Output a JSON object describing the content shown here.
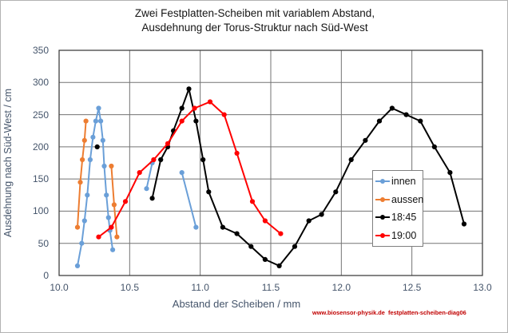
{
  "page": {
    "title_line_1": "Zwei Festplatten-Scheiben mit variablem Abstand,",
    "title_line_2": "Ausdehnung der Torus-Struktur nach Süd-West",
    "watermark": "www.biosensor-physik.de  festplatten-scheiben-diag06"
  },
  "chart_data": {
    "type": "line",
    "title": "Zwei Festplatten-Scheiben mit variablem Abstand, Ausdehnung der Torus-Struktur nach Süd-West",
    "xlabel": "Abstand der Scheiben / mm",
    "ylabel": "Ausdehnung nach Süd-West / cm",
    "xlim": [
      10.0,
      13.0
    ],
    "ylim": [
      0,
      350
    ],
    "x_ticks": [
      10.0,
      10.5,
      11.0,
      11.5,
      12.0,
      12.5,
      13.0
    ],
    "x_tick_labels": [
      "10.0",
      "10.5",
      "11.0",
      "11.5",
      "12.0",
      "12.5",
      "13.0"
    ],
    "y_ticks": [
      0,
      50,
      100,
      150,
      200,
      250,
      300,
      350
    ],
    "y_tick_labels": [
      "0",
      "50",
      "100",
      "150",
      "200",
      "250",
      "300",
      "350"
    ],
    "grid": true,
    "legend_position": "center-right",
    "legend_entries": [
      "innen",
      "aussen",
      "18:45",
      "19:00"
    ],
    "series": [
      {
        "name": "innen",
        "color": "#6a9fd8",
        "marker": "circle",
        "segments": [
          [
            [
              10.13,
              15
            ],
            [
              10.16,
              50
            ],
            [
              10.18,
              85
            ],
            [
              10.2,
              125
            ],
            [
              10.22,
              180
            ],
            [
              10.24,
              215
            ],
            [
              10.26,
              240
            ],
            [
              10.28,
              260
            ],
            [
              10.295,
              240
            ],
            [
              10.31,
              210
            ],
            [
              10.32,
              170
            ],
            [
              10.335,
              125
            ],
            [
              10.35,
              90
            ],
            [
              10.36,
              70
            ],
            [
              10.38,
              40
            ]
          ],
          [
            [
              10.62,
              135
            ],
            [
              10.66,
              175
            ]
          ],
          [
            [
              10.87,
              160
            ],
            [
              10.97,
              75
            ]
          ]
        ]
      },
      {
        "name": "aussen",
        "color": "#ed7d31",
        "marker": "circle",
        "segments": [
          [
            [
              10.13,
              75
            ],
            [
              10.15,
              145
            ],
            [
              10.165,
              180
            ],
            [
              10.18,
              210
            ],
            [
              10.19,
              240
            ]
          ],
          [
            [
              10.37,
              170
            ],
            [
              10.39,
              110
            ],
            [
              10.41,
              60
            ]
          ]
        ]
      },
      {
        "name": "18:45",
        "color": "#000000",
        "marker": "circle",
        "segments": [
          [
            [
              10.27,
              200
            ]
          ],
          [
            [
              10.66,
              120
            ],
            [
              10.72,
              180
            ],
            [
              10.77,
              200
            ],
            [
              10.81,
              225
            ],
            [
              10.87,
              260
            ],
            [
              10.92,
              290
            ],
            [
              10.97,
              240
            ],
            [
              11.02,
              180
            ],
            [
              11.06,
              130
            ],
            [
              11.16,
              75
            ],
            [
              11.26,
              65
            ],
            [
              11.36,
              45
            ],
            [
              11.46,
              25
            ],
            [
              11.56,
              15
            ],
            [
              11.67,
              45
            ],
            [
              11.77,
              85
            ],
            [
              11.86,
              95
            ],
            [
              11.96,
              130
            ],
            [
              12.07,
              180
            ],
            [
              12.17,
              210
            ],
            [
              12.27,
              240
            ],
            [
              12.36,
              260
            ],
            [
              12.46,
              250
            ],
            [
              12.56,
              240
            ],
            [
              12.66,
              200
            ],
            [
              12.77,
              160
            ],
            [
              12.87,
              80
            ]
          ]
        ]
      },
      {
        "name": "19:00",
        "color": "#ff0000",
        "marker": "circle",
        "segments": [
          [
            [
              10.28,
              60
            ],
            [
              10.37,
              75
            ],
            [
              10.47,
              115
            ],
            [
              10.57,
              160
            ],
            [
              10.67,
              180
            ],
            [
              10.77,
              205
            ],
            [
              10.87,
              240
            ],
            [
              10.96,
              260
            ],
            [
              11.07,
              270
            ],
            [
              11.17,
              250
            ],
            [
              11.26,
              190
            ],
            [
              11.37,
              115
            ],
            [
              11.46,
              85
            ],
            [
              11.57,
              65
            ]
          ]
        ]
      }
    ]
  },
  "style": {
    "axis_text_color": "#44546a",
    "grid_color": "#737373",
    "plot_border_color": "#333333",
    "watermark_color": "#c00000",
    "frame_border_color": "#b3b3b3"
  }
}
